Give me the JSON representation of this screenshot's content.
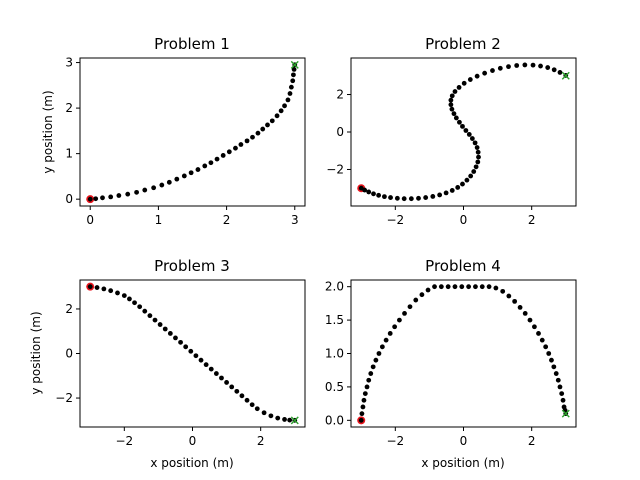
{
  "chart_data": [
    {
      "type": "scatter",
      "title": "Problem 1",
      "xlabel": "",
      "ylabel": "y position (m)",
      "xlim": [
        -0.15,
        3.15
      ],
      "ylim": [
        -0.15,
        3.1
      ],
      "xticks": [
        0,
        1,
        2,
        3
      ],
      "yticks": [
        0,
        1,
        2,
        3
      ],
      "start": [
        0,
        0
      ],
      "goal": [
        3,
        2.95
      ],
      "x": [
        0,
        0.08,
        0.18,
        0.3,
        0.42,
        0.55,
        0.68,
        0.8,
        0.93,
        1.05,
        1.16,
        1.27,
        1.38,
        1.48,
        1.58,
        1.68,
        1.77,
        1.86,
        1.95,
        2.04,
        2.13,
        2.21,
        2.3,
        2.38,
        2.46,
        2.53,
        2.6,
        2.67,
        2.74,
        2.8,
        2.85,
        2.9,
        2.93,
        2.95,
        2.97,
        2.98,
        2.99,
        3.0
      ],
      "y": [
        0,
        0.01,
        0.03,
        0.05,
        0.08,
        0.11,
        0.15,
        0.2,
        0.25,
        0.31,
        0.37,
        0.44,
        0.51,
        0.58,
        0.65,
        0.73,
        0.8,
        0.88,
        0.96,
        1.04,
        1.12,
        1.2,
        1.28,
        1.36,
        1.45,
        1.54,
        1.63,
        1.72,
        1.83,
        1.94,
        2.05,
        2.18,
        2.32,
        2.46,
        2.6,
        2.73,
        2.85,
        2.95
      ]
    },
    {
      "type": "scatter",
      "title": "Problem 2",
      "xlabel": "",
      "ylabel": "",
      "xlim": [
        -3.3,
        3.3
      ],
      "ylim": [
        -3.95,
        3.95
      ],
      "xticks": [
        -2,
        0,
        2
      ],
      "yticks": [
        -2,
        0,
        2
      ],
      "start": [
        -3,
        -3
      ],
      "goal": [
        3,
        3
      ],
      "x": [
        -3.0,
        -2.9,
        -2.78,
        -2.64,
        -2.49,
        -2.32,
        -2.14,
        -1.94,
        -1.74,
        -1.53,
        -1.32,
        -1.11,
        -0.9,
        -0.7,
        -0.51,
        -0.33,
        -0.17,
        -0.03,
        0.1,
        0.21,
        0.3,
        0.37,
        0.42,
        0.44,
        0.43,
        0.4,
        0.34,
        0.26,
        0.17,
        0.07,
        -0.03,
        -0.12,
        -0.21,
        -0.28,
        -0.34,
        -0.37,
        -0.37,
        -0.33,
        -0.25,
        -0.13,
        0.02,
        0.2,
        0.4,
        0.62,
        0.85,
        1.08,
        1.32,
        1.56,
        1.8,
        2.04,
        2.26,
        2.47,
        2.66,
        2.83,
        3.0
      ],
      "y": [
        -3.0,
        -3.1,
        -3.2,
        -3.3,
        -3.38,
        -3.45,
        -3.5,
        -3.54,
        -3.56,
        -3.56,
        -3.54,
        -3.5,
        -3.44,
        -3.36,
        -3.25,
        -3.12,
        -2.96,
        -2.78,
        -2.57,
        -2.35,
        -2.11,
        -1.86,
        -1.6,
        -1.34,
        -1.08,
        -0.83,
        -0.58,
        -0.35,
        -0.13,
        0.08,
        0.3,
        0.52,
        0.75,
        0.98,
        1.22,
        1.46,
        1.7,
        1.93,
        2.16,
        2.38,
        2.6,
        2.8,
        2.98,
        3.14,
        3.28,
        3.4,
        3.49,
        3.55,
        3.58,
        3.57,
        3.52,
        3.44,
        3.32,
        3.18,
        3.02
      ]
    },
    {
      "type": "scatter",
      "title": "Problem 3",
      "xlabel": "x position (m)",
      "ylabel": "y position (m)",
      "xlim": [
        -3.3,
        3.3
      ],
      "ylim": [
        -3.3,
        3.3
      ],
      "xticks": [
        -2,
        0,
        2
      ],
      "yticks": [
        -2,
        0,
        2
      ],
      "start": [
        -3,
        3
      ],
      "goal": [
        3,
        -3
      ],
      "x": [
        -3.0,
        -2.8,
        -2.6,
        -2.4,
        -2.2,
        -2.0,
        -1.85,
        -1.7,
        -1.55,
        -1.4,
        -1.25,
        -1.1,
        -0.95,
        -0.8,
        -0.65,
        -0.5,
        -0.35,
        -0.2,
        -0.05,
        0.1,
        0.25,
        0.4,
        0.55,
        0.7,
        0.85,
        1.0,
        1.15,
        1.3,
        1.45,
        1.6,
        1.75,
        1.9,
        2.1,
        2.3,
        2.5,
        2.7,
        2.85,
        3.0
      ],
      "y": [
        3.0,
        2.96,
        2.9,
        2.82,
        2.72,
        2.6,
        2.45,
        2.28,
        2.1,
        1.9,
        1.7,
        1.5,
        1.3,
        1.1,
        0.9,
        0.7,
        0.5,
        0.3,
        0.1,
        -0.1,
        -0.3,
        -0.5,
        -0.7,
        -0.9,
        -1.1,
        -1.3,
        -1.5,
        -1.7,
        -1.9,
        -2.1,
        -2.3,
        -2.48,
        -2.66,
        -2.8,
        -2.9,
        -2.96,
        -2.99,
        -3.0
      ]
    },
    {
      "type": "scatter",
      "title": "Problem 4",
      "xlabel": "x position (m)",
      "ylabel": "",
      "xlim": [
        -3.3,
        3.3
      ],
      "ylim": [
        -0.1,
        2.1
      ],
      "xticks": [
        -2,
        0,
        2
      ],
      "yticks": [
        0.0,
        0.5,
        1.0,
        1.5,
        2.0
      ],
      "start": [
        -3,
        0
      ],
      "goal": [
        3,
        0.1
      ],
      "x": [
        -3.0,
        -2.98,
        -2.95,
        -2.92,
        -2.88,
        -2.83,
        -2.78,
        -2.72,
        -2.65,
        -2.57,
        -2.48,
        -2.38,
        -2.27,
        -2.15,
        -2.02,
        -1.88,
        -1.73,
        -1.57,
        -1.4,
        -1.22,
        -1.04,
        -0.85,
        -0.65,
        -0.45,
        -0.25,
        -0.05,
        0.15,
        0.35,
        0.55,
        0.75,
        0.95,
        1.15,
        1.33,
        1.5,
        1.66,
        1.81,
        1.95,
        2.08,
        2.2,
        2.31,
        2.41,
        2.5,
        2.58,
        2.65,
        2.72,
        2.78,
        2.83,
        2.88,
        2.92,
        2.95,
        2.98,
        3.0
      ],
      "y": [
        0.0,
        0.1,
        0.2,
        0.3,
        0.4,
        0.5,
        0.6,
        0.7,
        0.8,
        0.9,
        1.0,
        1.1,
        1.2,
        1.3,
        1.4,
        1.5,
        1.6,
        1.7,
        1.8,
        1.88,
        1.95,
        2.0,
        2.0,
        2.0,
        2.0,
        2.0,
        2.0,
        2.0,
        2.0,
        2.0,
        1.98,
        1.93,
        1.86,
        1.78,
        1.69,
        1.6,
        1.5,
        1.4,
        1.3,
        1.2,
        1.1,
        1.0,
        0.9,
        0.8,
        0.7,
        0.6,
        0.5,
        0.4,
        0.3,
        0.2,
        0.15,
        0.1
      ]
    }
  ]
}
